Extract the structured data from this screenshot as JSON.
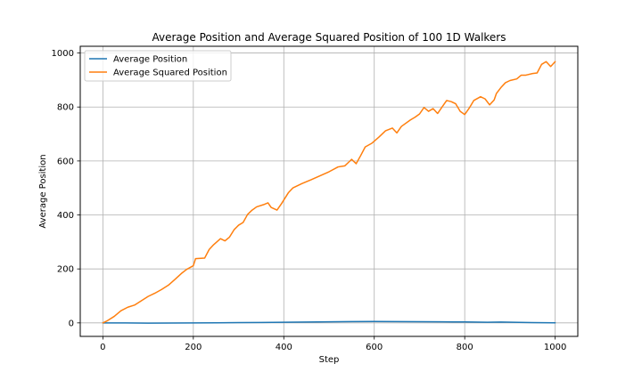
{
  "chart_data": {
    "type": "line",
    "title": "Average Position and Average Squared Position of 100 1D Walkers",
    "xlabel": "Step",
    "ylabel": "Average Position",
    "xlim": [
      -50,
      1050
    ],
    "ylim": [
      -50,
      1025
    ],
    "xticks": [
      0,
      200,
      400,
      600,
      800,
      1000
    ],
    "yticks": [
      0,
      200,
      400,
      600,
      800,
      1000
    ],
    "grid": true,
    "legend_position": "upper-left",
    "series": [
      {
        "name": "Average Position",
        "color": "#1f77b4",
        "points": [
          [
            0,
            0
          ],
          [
            50,
            -0.2
          ],
          [
            100,
            -0.8
          ],
          [
            150,
            -0.5
          ],
          [
            200,
            -0.3
          ],
          [
            250,
            0.3
          ],
          [
            300,
            1.0
          ],
          [
            350,
            1.5
          ],
          [
            400,
            2.5
          ],
          [
            450,
            3.2
          ],
          [
            500,
            4.0
          ],
          [
            550,
            4.8
          ],
          [
            600,
            5.2
          ],
          [
            650,
            5.0
          ],
          [
            700,
            4.5
          ],
          [
            750,
            4.0
          ],
          [
            800,
            3.5
          ],
          [
            850,
            2.5
          ],
          [
            880,
            3.2
          ],
          [
            920,
            2.0
          ],
          [
            950,
            1.2
          ],
          [
            1000,
            0.2
          ]
        ]
      },
      {
        "name": "Average Squared Position",
        "color": "#ff7f0e",
        "points": [
          [
            0,
            0
          ],
          [
            10,
            8
          ],
          [
            25,
            24
          ],
          [
            40,
            45
          ],
          [
            55,
            58
          ],
          [
            70,
            66
          ],
          [
            85,
            82
          ],
          [
            100,
            98
          ],
          [
            115,
            110
          ],
          [
            130,
            124
          ],
          [
            145,
            140
          ],
          [
            160,
            162
          ],
          [
            175,
            185
          ],
          [
            185,
            198
          ],
          [
            200,
            212
          ],
          [
            205,
            238
          ],
          [
            225,
            240
          ],
          [
            235,
            272
          ],
          [
            245,
            290
          ],
          [
            260,
            312
          ],
          [
            270,
            304
          ],
          [
            280,
            318
          ],
          [
            290,
            345
          ],
          [
            300,
            362
          ],
          [
            310,
            372
          ],
          [
            320,
            402
          ],
          [
            330,
            418
          ],
          [
            340,
            430
          ],
          [
            355,
            438
          ],
          [
            365,
            445
          ],
          [
            372,
            428
          ],
          [
            385,
            418
          ],
          [
            395,
            442
          ],
          [
            410,
            482
          ],
          [
            420,
            500
          ],
          [
            440,
            516
          ],
          [
            460,
            530
          ],
          [
            480,
            545
          ],
          [
            500,
            560
          ],
          [
            520,
            578
          ],
          [
            535,
            582
          ],
          [
            545,
            598
          ],
          [
            550,
            606
          ],
          [
            560,
            590
          ],
          [
            570,
            620
          ],
          [
            580,
            652
          ],
          [
            595,
            666
          ],
          [
            610,
            688
          ],
          [
            625,
            712
          ],
          [
            640,
            722
          ],
          [
            650,
            704
          ],
          [
            660,
            728
          ],
          [
            680,
            752
          ],
          [
            690,
            762
          ],
          [
            700,
            774
          ],
          [
            710,
            798
          ],
          [
            720,
            784
          ],
          [
            730,
            794
          ],
          [
            740,
            776
          ],
          [
            750,
            800
          ],
          [
            760,
            824
          ],
          [
            770,
            820
          ],
          [
            780,
            812
          ],
          [
            790,
            784
          ],
          [
            800,
            772
          ],
          [
            810,
            796
          ],
          [
            820,
            824
          ],
          [
            835,
            838
          ],
          [
            845,
            830
          ],
          [
            855,
            808
          ],
          [
            865,
            826
          ],
          [
            870,
            850
          ],
          [
            880,
            872
          ],
          [
            890,
            890
          ],
          [
            900,
            898
          ],
          [
            915,
            904
          ],
          [
            925,
            918
          ],
          [
            935,
            918
          ],
          [
            950,
            924
          ],
          [
            960,
            926
          ],
          [
            970,
            958
          ],
          [
            980,
            968
          ],
          [
            990,
            950
          ],
          [
            1000,
            968
          ]
        ]
      }
    ]
  }
}
